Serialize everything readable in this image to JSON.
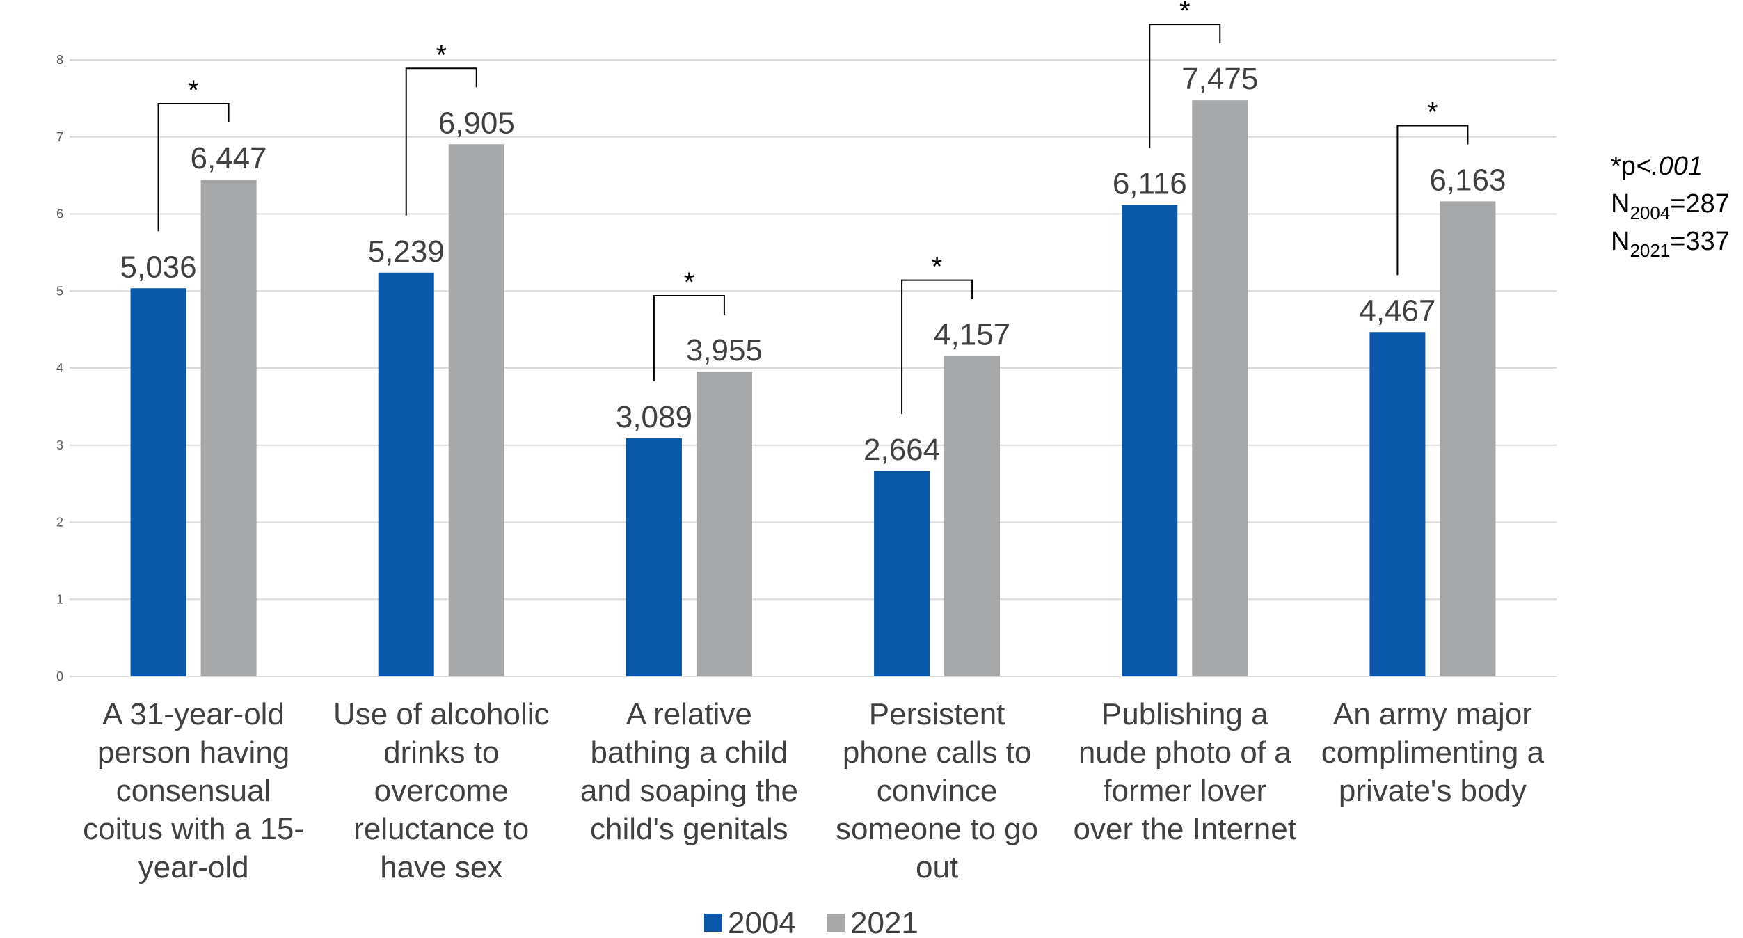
{
  "chart_data": {
    "type": "bar",
    "categories": [
      [
        "A 31-year-old",
        "person having",
        "consensual",
        "coitus with a 15-",
        "year-old"
      ],
      [
        "Use of alcoholic",
        "drinks to",
        "overcome",
        "reluctance to",
        "have sex"
      ],
      [
        "A relative",
        "bathing a child",
        "and soaping the",
        "child's genitals"
      ],
      [
        "Persistent",
        "phone calls to",
        "convince",
        "someone to go",
        "out"
      ],
      [
        "Publishing a",
        "nude photo of a",
        "former lover",
        "over the Internet"
      ],
      [
        "An army major",
        "complimenting a",
        "private's body"
      ]
    ],
    "series": [
      {
        "name": "2004",
        "color": "#0a56a8",
        "values": [
          5.036,
          5.239,
          3.089,
          2.664,
          6.116,
          4.467
        ],
        "labels": [
          "5,036",
          "5,239",
          "3,089",
          "2,664",
          "6,116",
          "4,467"
        ]
      },
      {
        "name": "2021",
        "color": "#a6a7a9",
        "values": [
          6.447,
          6.905,
          3.955,
          4.157,
          7.475,
          6.163
        ],
        "labels": [
          "6,447",
          "6,905",
          "3,955",
          "4,157",
          "7,475",
          "6,163"
        ]
      }
    ],
    "significance": [
      "*",
      "*",
      "*",
      "*",
      "*",
      "*"
    ],
    "ylim": [
      0,
      8
    ],
    "yticks": [
      0,
      1,
      2,
      3,
      4,
      5,
      6,
      7,
      8
    ],
    "grid": true,
    "legend_position": "bottom"
  },
  "note": {
    "sig_prefix": "*p",
    "sig_value": "<.001",
    "n1_label": "N",
    "n1_sub": "2004",
    "n1_value": "=287",
    "n2_label": "N",
    "n2_sub": "2021",
    "n2_value": "=337"
  }
}
